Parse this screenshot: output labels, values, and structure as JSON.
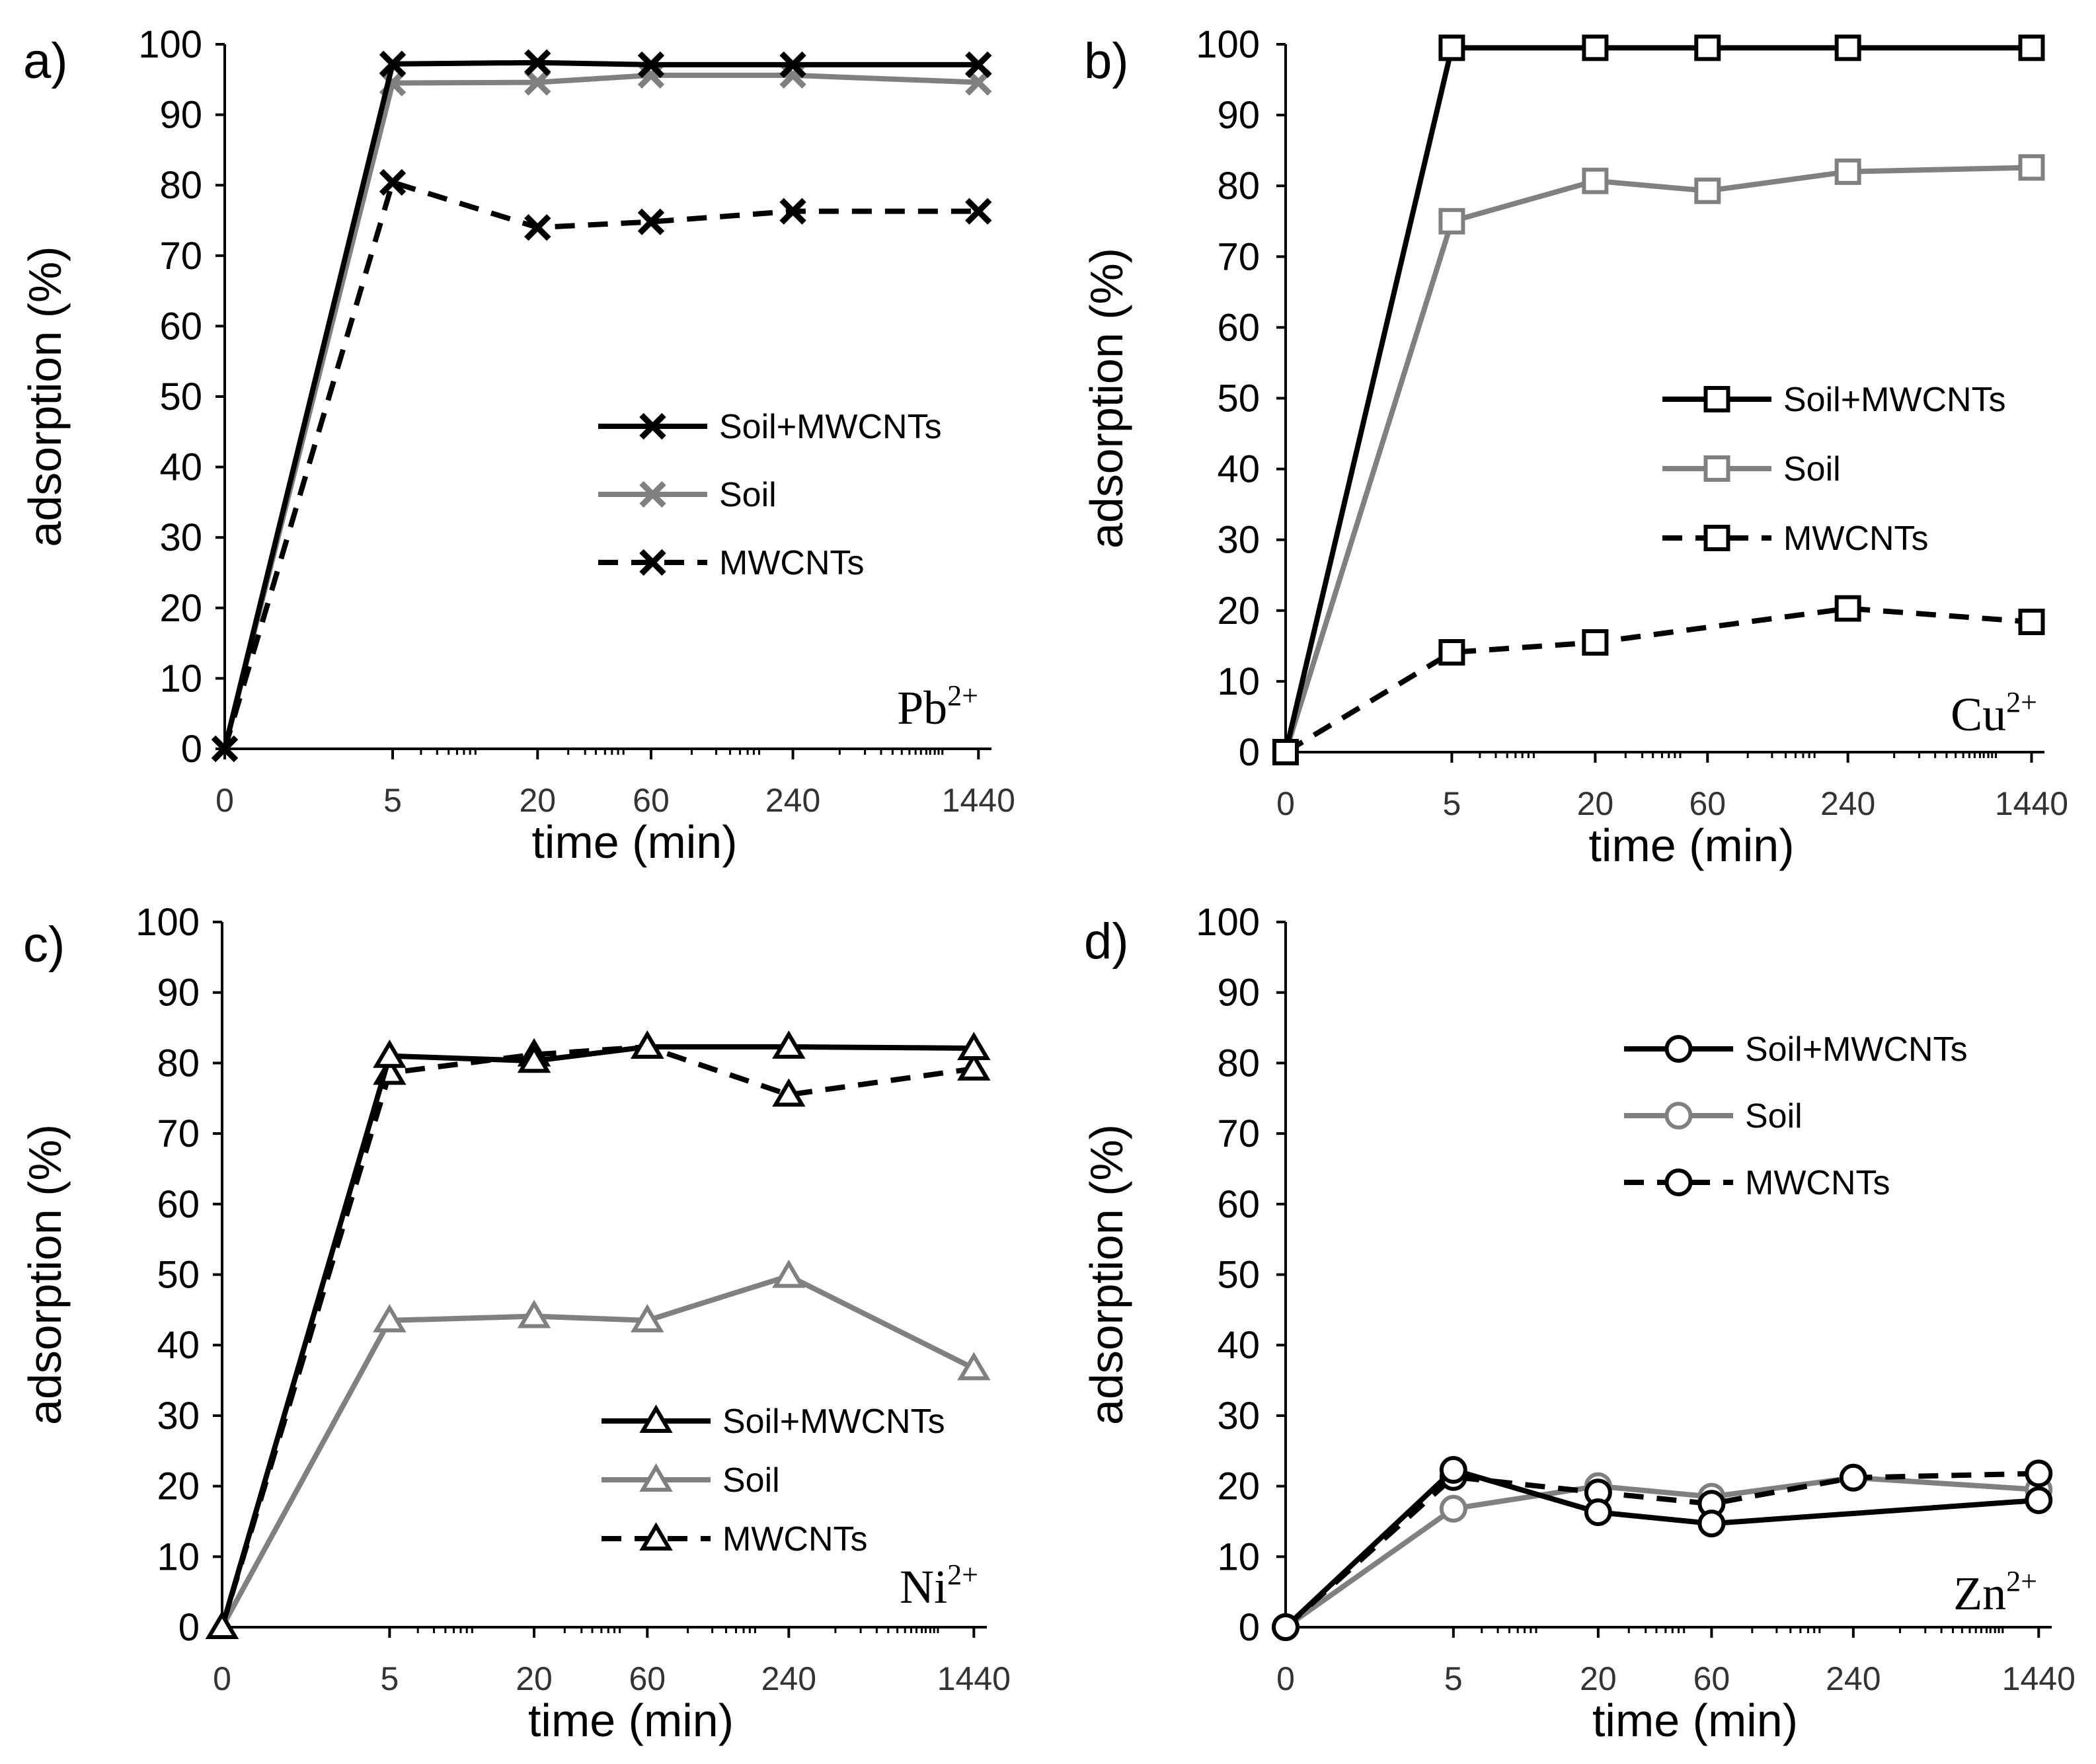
{
  "chart_data": [
    {
      "type": "line",
      "panel_label": "a)",
      "ion": "Pb",
      "ion_charge": "2+",
      "xlabel": "time (min)",
      "ylabel": "adsorption (%)",
      "x": [
        0,
        5,
        20,
        60,
        240,
        1440
      ],
      "x_tick_labels": [
        "0",
        "5",
        "20",
        "60",
        "240",
        "1440"
      ],
      "y_ticks": [
        0,
        10,
        20,
        30,
        40,
        50,
        60,
        70,
        80,
        90,
        100
      ],
      "ylim": [
        0,
        100
      ],
      "marker": "x",
      "legend_position": "center-right",
      "series": [
        {
          "name": "Soil+MWCNTs",
          "values": [
            0,
            97.2,
            97.4,
            97.1,
            97.1,
            97.1
          ],
          "color": "#000000",
          "dash": "solid"
        },
        {
          "name": "Soil",
          "values": [
            0,
            94.5,
            94.6,
            95.6,
            95.6,
            94.6
          ],
          "color": "#808080",
          "dash": "solid"
        },
        {
          "name": "MWCNTs",
          "values": [
            0,
            80.4,
            74.0,
            74.8,
            76.3,
            76.3
          ],
          "color": "#000000",
          "dash": "dashed"
        }
      ]
    },
    {
      "type": "line",
      "panel_label": "b)",
      "ion": "Cu",
      "ion_charge": "2+",
      "xlabel": "time (min)",
      "ylabel": "adsorption (%)",
      "x": [
        0,
        5,
        20,
        60,
        240,
        1440
      ],
      "x_tick_labels": [
        "0",
        "5",
        "20",
        "60",
        "240",
        "1440"
      ],
      "y_ticks": [
        0,
        10,
        20,
        30,
        40,
        50,
        60,
        70,
        80,
        90,
        100
      ],
      "ylim": [
        0,
        100
      ],
      "marker": "square",
      "legend_position": "center-right",
      "series": [
        {
          "name": "Soil+MWCNTs",
          "values": [
            0,
            99.5,
            99.5,
            99.5,
            99.5,
            99.5
          ],
          "color": "#000000",
          "dash": "solid"
        },
        {
          "name": "Soil",
          "values": [
            0,
            75.0,
            80.7,
            79.3,
            82.0,
            82.6
          ],
          "color": "#808080",
          "dash": "solid"
        },
        {
          "name": "MWCNTs",
          "values": [
            0,
            14.1,
            15.5,
            null,
            20.3,
            18.4
          ],
          "color": "#000000",
          "dash": "dashed"
        }
      ]
    },
    {
      "type": "line",
      "panel_label": "c)",
      "ion": "Ni",
      "ion_charge": "2+",
      "xlabel": "time (min)",
      "ylabel": "adsorption (%)",
      "x": [
        0,
        5,
        20,
        60,
        240,
        1440
      ],
      "x_tick_labels": [
        "0",
        "5",
        "20",
        "60",
        "240",
        "1440"
      ],
      "y_ticks": [
        0,
        10,
        20,
        30,
        40,
        50,
        60,
        70,
        80,
        90,
        100
      ],
      "ylim": [
        0,
        100
      ],
      "marker": "triangle",
      "legend_position": "bottom-right",
      "series": [
        {
          "name": "Soil+MWCNTs",
          "values": [
            0,
            81.0,
            80.3,
            82.3,
            82.3,
            82.1
          ],
          "color": "#000000",
          "dash": "solid"
        },
        {
          "name": "Soil",
          "values": [
            0,
            43.5,
            44.1,
            43.5,
            49.8,
            36.7
          ],
          "color": "#808080",
          "dash": "solid"
        },
        {
          "name": "MWCNTs",
          "values": [
            0,
            78.6,
            81.2,
            82.3,
            75.5,
            79.2
          ],
          "color": "#000000",
          "dash": "dashed"
        }
      ]
    },
    {
      "type": "line",
      "panel_label": "d)",
      "ion": "Zn",
      "ion_charge": "2+",
      "xlabel": "time (min)",
      "ylabel": "adsorption (%)",
      "x": [
        0,
        5,
        20,
        60,
        240,
        1440
      ],
      "x_tick_labels": [
        "0",
        "5",
        "20",
        "60",
        "240",
        "1440"
      ],
      "y_ticks": [
        0,
        10,
        20,
        30,
        40,
        50,
        60,
        70,
        80,
        90,
        100
      ],
      "ylim": [
        0,
        100
      ],
      "marker": "circle",
      "legend_position": "top-right",
      "series": [
        {
          "name": "Soil+MWCNTs",
          "values": [
            0,
            22.3,
            16.3,
            14.7,
            null,
            18.0
          ],
          "color": "#000000",
          "dash": "solid"
        },
        {
          "name": "Soil",
          "values": [
            0,
            16.8,
            20.0,
            18.5,
            21.2,
            19.5
          ],
          "color": "#808080",
          "dash": "solid"
        },
        {
          "name": "MWCNTs",
          "values": [
            0,
            21.3,
            19.1,
            17.5,
            21.2,
            21.8
          ],
          "color": "#000000",
          "dash": "dashed"
        }
      ]
    }
  ]
}
